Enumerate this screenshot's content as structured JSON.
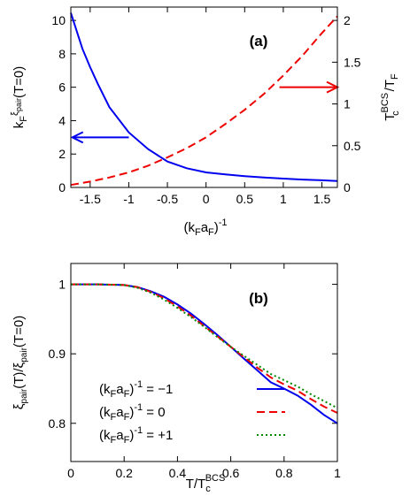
{
  "chart_data": [
    {
      "panel_label": "(a)",
      "type": "line",
      "xlabel": {
        "main": "(k",
        "sub1": "F",
        "mid": "a",
        "sub2": "F",
        "close": ")",
        "sup": "-1"
      },
      "ylabel_left": {
        "main": "k",
        "sub": "F",
        "xi": "ξ",
        "xisub": "pair",
        "rest": "(T=0)"
      },
      "ylabel_right": {
        "T": "T",
        "sup": "BCS",
        "sub": "c",
        "slash": "/T",
        "sub2": "F"
      },
      "xlim": [
        -1.75,
        1.7
      ],
      "ylim_left": [
        0,
        10.8
      ],
      "ylim_right": [
        0,
        2.16
      ],
      "x_ticks": [
        -1.5,
        -1,
        -0.5,
        0,
        0.5,
        1,
        1.5
      ],
      "x_tick_labels": [
        "-1.5",
        "-1",
        "-0.5",
        "0",
        "0.5",
        "1",
        "1.5"
      ],
      "y_left_ticks": [
        0,
        2,
        4,
        6,
        8,
        10
      ],
      "y_left_tick_labels": [
        "0",
        "2",
        "4",
        "6",
        "8",
        "10"
      ],
      "y_right_ticks": [
        0,
        0.5,
        1,
        1.5,
        2
      ],
      "y_right_tick_labels": [
        "0",
        "0.5",
        "1",
        "1.5",
        "2"
      ],
      "series": [
        {
          "axis": "left",
          "color": "#0000ee",
          "style": "solid",
          "x": [
            -1.75,
            -1.6,
            -1.5,
            -1.4,
            -1.25,
            -1.0,
            -0.75,
            -0.5,
            -0.25,
            0,
            0.25,
            0.5,
            0.75,
            1.0,
            1.25,
            1.5,
            1.7
          ],
          "y": [
            10.45,
            8.3,
            7.2,
            6.2,
            4.8,
            3.3,
            2.3,
            1.55,
            1.15,
            0.9,
            0.78,
            0.68,
            0.6,
            0.53,
            0.47,
            0.43,
            0.38
          ]
        },
        {
          "axis": "right",
          "color": "#ee0000",
          "style": "dashed",
          "x": [
            -1.75,
            -1.5,
            -1.25,
            -1.0,
            -0.75,
            -0.5,
            -0.25,
            0,
            0.25,
            0.5,
            0.75,
            1.0,
            1.25,
            1.5,
            1.7
          ],
          "y": [
            0.03,
            0.07,
            0.12,
            0.18,
            0.26,
            0.36,
            0.47,
            0.6,
            0.76,
            0.93,
            1.12,
            1.34,
            1.58,
            1.85,
            2.05
          ]
        }
      ],
      "arrows": [
        {
          "from_x": -1.0,
          "to_x": -1.73,
          "y_left": 3.0,
          "color": "#0000ee"
        },
        {
          "from_x": 0.95,
          "to_x": 1.7,
          "y_left": 6.0,
          "color": "#ee0000"
        }
      ]
    },
    {
      "panel_label": "(b)",
      "type": "line",
      "xlabel": {
        "main": "T/T",
        "sub": "c",
        "sup": "BCS"
      },
      "ylabel": {
        "xi1": "ξ",
        "sub1": "pair",
        "mid": "(T)/",
        "xi2": "ξ",
        "sub2": "pair",
        "rest": "(T=0)"
      },
      "xlim": [
        0,
        1
      ],
      "ylim": [
        0.745,
        1.03
      ],
      "x_ticks": [
        0,
        0.2,
        0.4,
        0.6,
        0.8,
        1
      ],
      "x_tick_labels": [
        "0",
        "0.2",
        "0.4",
        "0.6",
        "0.8",
        "1"
      ],
      "y_ticks": [
        0.8,
        0.9,
        1
      ],
      "y_tick_labels": [
        "0.8",
        "0.9",
        "1"
      ],
      "legend_position": "bottom-left",
      "series": [
        {
          "name_parts": {
            "pre": "(k",
            "s1": "F",
            "mid": "a",
            "s2": "F",
            "close": ")",
            "sup": "-1",
            "eq": " = −1"
          },
          "color": "#0000ee",
          "style": "solid",
          "x": [
            0,
            0.1,
            0.2,
            0.25,
            0.3,
            0.35,
            0.4,
            0.45,
            0.5,
            0.55,
            0.6,
            0.65,
            0.7,
            0.75,
            0.8,
            0.85,
            0.9,
            0.95,
            1.0
          ],
          "y": [
            1.0,
            1.0,
            0.999,
            0.996,
            0.99,
            0.982,
            0.971,
            0.958,
            0.943,
            0.927,
            0.91,
            0.893,
            0.876,
            0.859,
            0.85,
            0.84,
            0.827,
            0.812,
            0.8
          ]
        },
        {
          "name_parts": {
            "pre": "(k",
            "s1": "F",
            "mid": "a",
            "s2": "F",
            "close": ")",
            "sup": "-1",
            "eq": " =   0"
          },
          "color": "#ee0000",
          "style": "dashed",
          "x": [
            0,
            0.1,
            0.2,
            0.25,
            0.3,
            0.35,
            0.4,
            0.45,
            0.5,
            0.55,
            0.6,
            0.65,
            0.7,
            0.75,
            0.8,
            0.85,
            0.9,
            0.95,
            1.0
          ],
          "y": [
            1.0,
            1.0,
            0.999,
            0.996,
            0.989,
            0.98,
            0.968,
            0.955,
            0.94,
            0.925,
            0.91,
            0.895,
            0.88,
            0.866,
            0.856,
            0.847,
            0.835,
            0.824,
            0.815
          ]
        },
        {
          "name_parts": {
            "pre": "(k",
            "s1": "F",
            "mid": "a",
            "s2": "F",
            "close": ")",
            "sup": "-1",
            "eq": " = +1"
          },
          "color": "#008800",
          "style": "dotted",
          "x": [
            0,
            0.1,
            0.2,
            0.25,
            0.3,
            0.35,
            0.4,
            0.45,
            0.5,
            0.55,
            0.6,
            0.65,
            0.7,
            0.75,
            0.8,
            0.85,
            0.9,
            0.95,
            1.0
          ],
          "y": [
            1.0,
            1.0,
            0.999,
            0.995,
            0.988,
            0.978,
            0.966,
            0.953,
            0.939,
            0.924,
            0.91,
            0.897,
            0.884,
            0.871,
            0.862,
            0.853,
            0.842,
            0.832,
            0.822
          ]
        }
      ]
    }
  ]
}
